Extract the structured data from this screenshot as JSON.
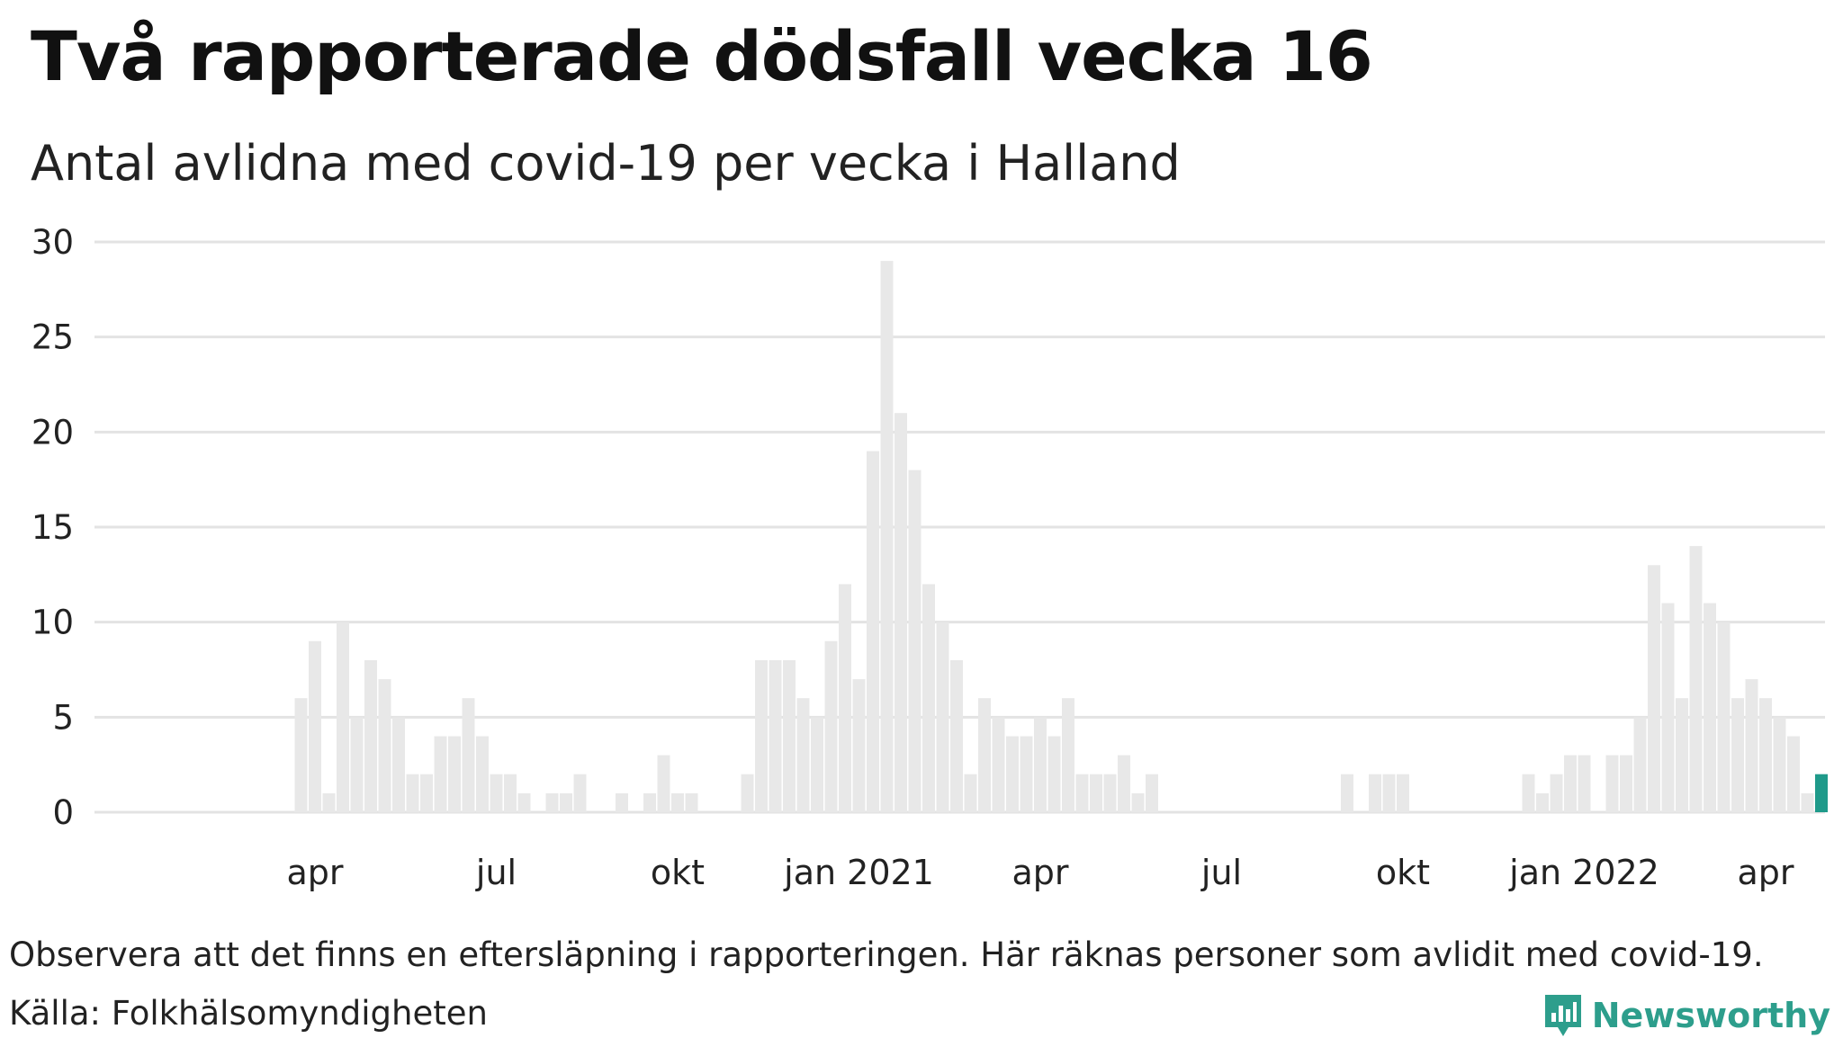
{
  "title": "Två rapporterade dödsfall vecka 16",
  "subtitle": "Antal avlidna med covid-19 per vecka i Halland",
  "note": "Observera att det finns en eftersläpning i rapporteringen. Här räknas personer som avlidit med covid-19.",
  "source": "Källa: Folkhälsomyndigheten",
  "brand": {
    "name": "Newsworthy",
    "icon": "newsworthy-logo-icon",
    "color": "#2d9e8c"
  },
  "colors": {
    "bar": "#e8e8e8",
    "highlight": "#1f9a8a",
    "grid": "#e3e3e3",
    "text": "#222222"
  },
  "chart_data": {
    "type": "bar",
    "title": "Antal avlidna med covid-19 per vecka i Halland",
    "xlabel": "",
    "ylabel": "",
    "ylim": [
      0,
      30
    ],
    "yticks": [
      0,
      5,
      10,
      15,
      20,
      25,
      30
    ],
    "grid": true,
    "x_ticks": [
      {
        "label": "apr",
        "index": 10
      },
      {
        "label": "jul",
        "index": 23
      },
      {
        "label": "okt",
        "index": 36
      },
      {
        "label": "jan 2021",
        "index": 49
      },
      {
        "label": "apr",
        "index": 62
      },
      {
        "label": "jul",
        "index": 75
      },
      {
        "label": "okt",
        "index": 88
      },
      {
        "label": "jan 2022",
        "index": 101
      },
      {
        "label": "apr",
        "index": 114
      }
    ],
    "values": [
      0,
      0,
      0,
      0,
      0,
      0,
      0,
      0,
      0,
      6,
      9,
      1,
      10,
      5,
      8,
      7,
      5,
      2,
      2,
      4,
      4,
      6,
      4,
      2,
      2,
      1,
      0,
      1,
      1,
      2,
      0,
      0,
      1,
      0,
      1,
      3,
      1,
      1,
      0,
      0,
      0,
      2,
      8,
      8,
      8,
      6,
      5,
      9,
      12,
      7,
      19,
      29,
      21,
      18,
      12,
      10,
      8,
      2,
      6,
      5,
      4,
      4,
      5,
      4,
      6,
      2,
      2,
      2,
      3,
      1,
      2,
      0,
      0,
      0,
      0,
      0,
      0,
      0,
      0,
      0,
      0,
      0,
      0,
      0,
      2,
      0,
      2,
      2,
      2,
      0,
      0,
      0,
      0,
      0,
      0,
      0,
      0,
      2,
      1,
      2,
      3,
      3,
      0,
      3,
      3,
      5,
      13,
      11,
      6,
      14,
      11,
      10,
      6,
      7,
      6,
      5,
      4,
      1,
      2
    ],
    "highlight_index": 118,
    "highlight_label": "vecka 16"
  }
}
